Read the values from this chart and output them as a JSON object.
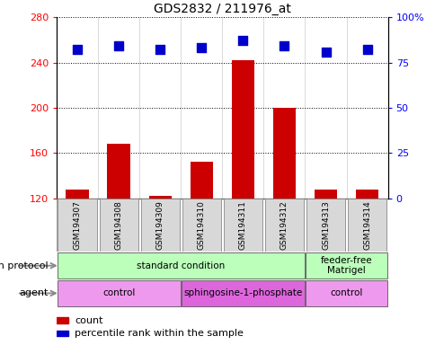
{
  "title": "GDS2832 / 211976_at",
  "samples": [
    "GSM194307",
    "GSM194308",
    "GSM194309",
    "GSM194310",
    "GSM194311",
    "GSM194312",
    "GSM194313",
    "GSM194314"
  ],
  "counts": [
    128,
    168,
    122,
    152,
    242,
    200,
    128,
    128
  ],
  "percentile_ranks": [
    82,
    84,
    82,
    83,
    87,
    84,
    81,
    82
  ],
  "ylim_left": [
    120,
    280
  ],
  "ylim_right": [
    0,
    100
  ],
  "yticks_left": [
    120,
    160,
    200,
    240,
    280
  ],
  "yticks_right": [
    0,
    25,
    50,
    75,
    100
  ],
  "bar_color": "#cc0000",
  "dot_color": "#0000cc",
  "growth_protocol_groups": [
    {
      "label": "standard condition",
      "start": 0,
      "end": 6,
      "color": "#bbffbb"
    },
    {
      "label": "feeder-free\nMatrigel",
      "start": 6,
      "end": 8,
      "color": "#bbffbb"
    }
  ],
  "agent_groups": [
    {
      "label": "control",
      "start": 0,
      "end": 3,
      "color": "#ee99ee"
    },
    {
      "label": "sphingosine-1-phosphate",
      "start": 3,
      "end": 6,
      "color": "#dd66dd"
    },
    {
      "label": "control",
      "start": 6,
      "end": 8,
      "color": "#ee99ee"
    }
  ],
  "growth_protocol_label": "growth protocol",
  "agent_label": "agent",
  "legend_count_label": "count",
  "legend_percentile_label": "percentile rank within the sample",
  "bar_width": 0.55,
  "dot_size": 55,
  "background_color": "#ffffff",
  "sample_box_color": "#d8d8d8",
  "bar_bottom": 120
}
